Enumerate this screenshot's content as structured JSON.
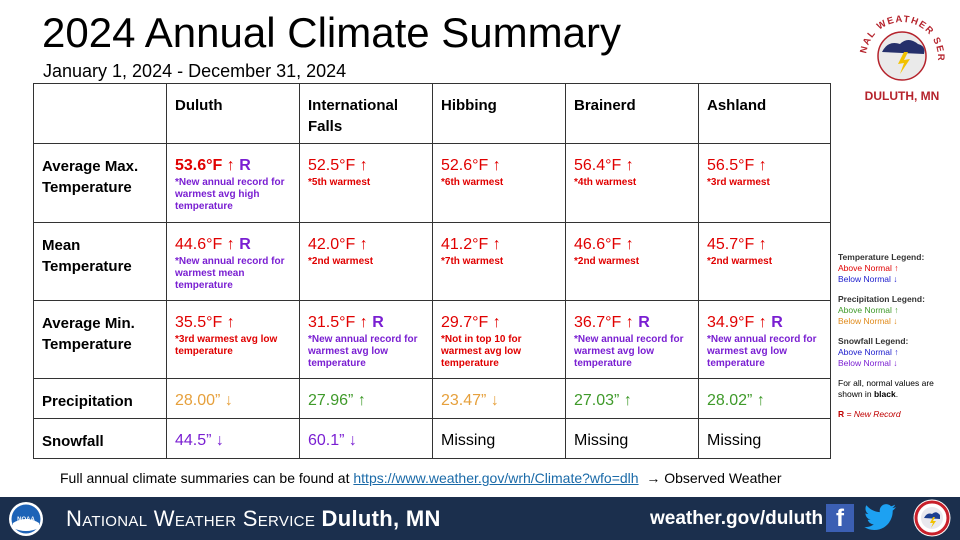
{
  "title": "2024 Annual Climate Summary",
  "subtitle": "January 1, 2024 - December 31, 2024",
  "logo": {
    "arc_text": "NATIONAL WEATHER SERVICE",
    "location": "DULUTH, MN"
  },
  "table": {
    "columns": [
      "Duluth",
      "International Falls",
      "Hibbing",
      "Brainerd",
      "Ashland"
    ],
    "rows": [
      {
        "label": "Average Max. Temperature",
        "cells": [
          {
            "value": "53.6°F ↑",
            "record": "R",
            "note": "*New annual record for warmest avg high temperature",
            "value_color": "red",
            "note_color": "purple",
            "bold": true
          },
          {
            "value": "52.5°F ↑",
            "record": "",
            "note": "*5th warmest",
            "value_color": "red",
            "note_color": "red"
          },
          {
            "value": "52.6°F ↑",
            "record": "",
            "note": "*6th warmest",
            "value_color": "red",
            "note_color": "red"
          },
          {
            "value": "56.4°F ↑",
            "record": "",
            "note": "*4th warmest",
            "value_color": "red",
            "note_color": "red"
          },
          {
            "value": "56.5°F ↑",
            "record": "",
            "note": "*3rd warmest",
            "value_color": "red",
            "note_color": "red"
          }
        ]
      },
      {
        "label": "Mean Temperature",
        "cells": [
          {
            "value": "44.6°F ↑",
            "record": "R",
            "note": "*New annual record for warmest mean temperature",
            "value_color": "red",
            "note_color": "purple"
          },
          {
            "value": "42.0°F ↑",
            "record": "",
            "note": "*2nd warmest",
            "value_color": "red",
            "note_color": "red"
          },
          {
            "value": "41.2°F ↑",
            "record": "",
            "note": "*7th warmest",
            "value_color": "red",
            "note_color": "red"
          },
          {
            "value": "46.6°F ↑",
            "record": "",
            "note": "*2nd warmest",
            "value_color": "red",
            "note_color": "red"
          },
          {
            "value": "45.7°F ↑",
            "record": "",
            "note": "*2nd warmest",
            "value_color": "red",
            "note_color": "red"
          }
        ]
      },
      {
        "label": "Average Min. Temperature",
        "cells": [
          {
            "value": "35.5°F ↑",
            "record": "",
            "note": "*3rd warmest avg low temperature",
            "value_color": "red",
            "note_color": "red"
          },
          {
            "value": "31.5°F ↑",
            "record": "R",
            "note": "*New annual record for warmest avg low temperature",
            "value_color": "red",
            "note_color": "purple"
          },
          {
            "value": "29.7°F ↑",
            "record": "",
            "note": "*Not in top 10 for warmest avg low temperature",
            "value_color": "red",
            "note_color": "red"
          },
          {
            "value": "36.7°F ↑",
            "record": "R",
            "note": "*New annual record for warmest avg low temperature",
            "value_color": "red",
            "note_color": "purple"
          },
          {
            "value": "34.9°F ↑",
            "record": "R",
            "note": "*New annual record for warmest avg low temperature",
            "value_color": "red",
            "note_color": "purple"
          }
        ]
      },
      {
        "label": "Precipitation",
        "cells": [
          {
            "value": "28.00” ↓",
            "record": "",
            "note": "",
            "value_color": "orange"
          },
          {
            "value": "27.96” ↑",
            "record": "",
            "note": "",
            "value_color": "green"
          },
          {
            "value": "23.47” ↓",
            "record": "",
            "note": "",
            "value_color": "orange"
          },
          {
            "value": "27.03” ↑",
            "record": "",
            "note": "",
            "value_color": "green"
          },
          {
            "value": "28.02” ↑",
            "record": "",
            "note": "",
            "value_color": "green"
          }
        ]
      },
      {
        "label": "Snowfall",
        "cells": [
          {
            "value": "44.5” ↓",
            "record": "",
            "note": "",
            "value_color": "purple"
          },
          {
            "value": "60.1” ↓",
            "record": "",
            "note": "",
            "value_color": "purple"
          },
          {
            "value": "Missing",
            "record": "",
            "note": "",
            "value_color": "black"
          },
          {
            "value": "Missing",
            "record": "",
            "note": "",
            "value_color": "black"
          },
          {
            "value": "Missing",
            "record": "",
            "note": "",
            "value_color": "black"
          }
        ]
      }
    ]
  },
  "legend": {
    "temperature": {
      "heading": "Temperature Legend:",
      "above": "Above Normal ↑",
      "below": "Below Normal ↓"
    },
    "precipitation": {
      "heading": "Precipitation Legend:",
      "above": "Above Normal ↑",
      "below": "Below Normal ↓"
    },
    "snowfall": {
      "heading": "Snowfall Legend:",
      "above": "Above Normal ↑",
      "below": "Below Normal ↓"
    },
    "normals_note_prefix": "For all, normal values are shown in",
    "normals_note_word": "black",
    "record_key": "R",
    "record_desc": "= New Record"
  },
  "footnote": {
    "prefix": "Full annual climate summaries can be found at",
    "link": "https://www.weather.gov/wrh/Climate?wfo=dlh",
    "suffix": "→ Observed Weather"
  },
  "footer": {
    "brand_prefix": "National Weather Service",
    "brand_location": "Duluth, MN",
    "website": "weather.gov/duluth",
    "noaa_text": "NOAA",
    "facebook_glyph": "f"
  },
  "colors": {
    "red": "#e00000",
    "purple": "#7a1fd2",
    "orange": "#e6a03c",
    "green": "#3f9a2a",
    "footer_bg": "#1b2f4d",
    "logo_red": "#b5232c"
  }
}
